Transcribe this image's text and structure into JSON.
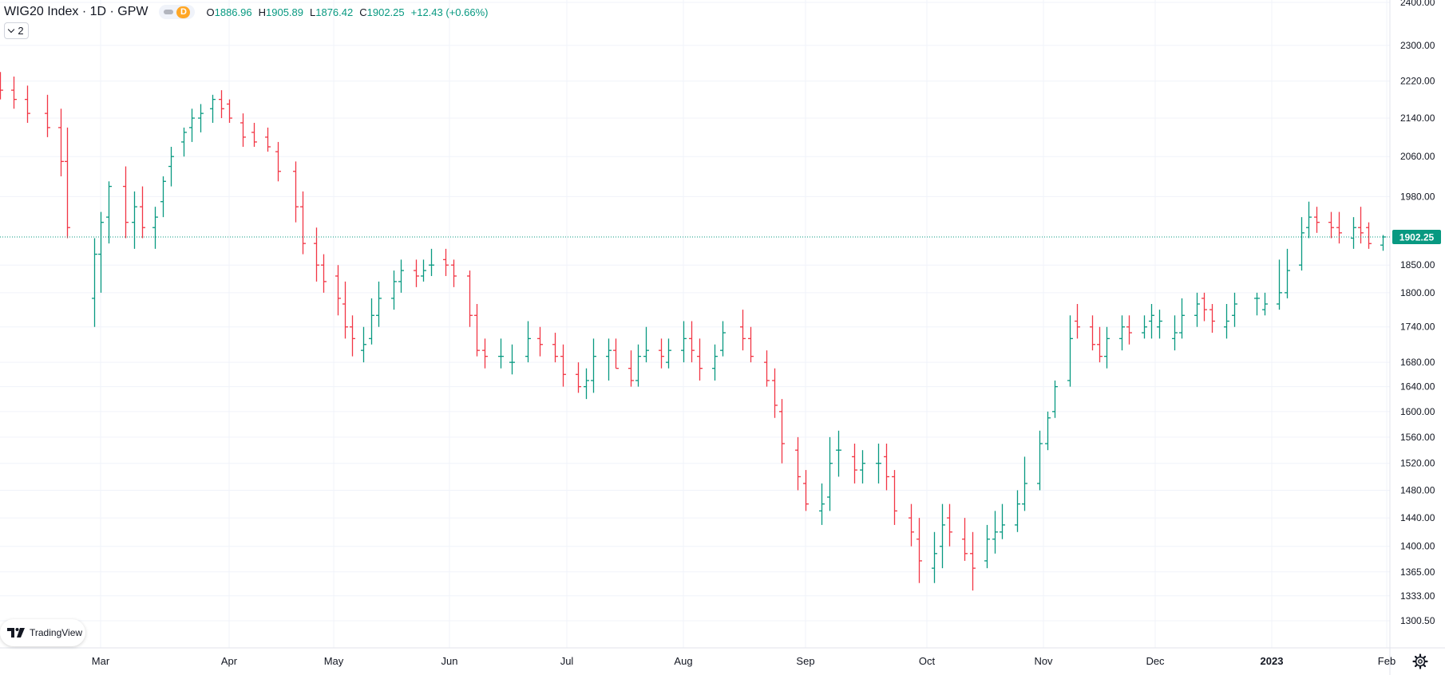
{
  "header": {
    "symbol_title": "WIG20 Index · 1D · GPW",
    "session_badge": "D",
    "ohlc": {
      "open_label": "O",
      "open": "1886.96",
      "high_label": "H",
      "high": "1905.89",
      "low_label": "L",
      "low": "1876.42",
      "close_label": "C",
      "close": "1902.25",
      "change": "+12.43 (+0.66%)"
    },
    "indicators_toggle": "2"
  },
  "branding": {
    "logo_text": "TradingView"
  },
  "colors": {
    "up": "#089981",
    "down": "#f23645",
    "grid": "#f0f3fa",
    "price_line": "#089981",
    "text": "#131722"
  },
  "icons": [
    "eye-icon",
    "chevron-down-icon",
    "tradingview-logo-icon",
    "gear-icon"
  ],
  "chart_data": {
    "type": "ohlc-bar",
    "instrument": "WIG20 Index",
    "exchange": "GPW",
    "interval": "1D",
    "y_axis": {
      "scale": "log",
      "ticks": [
        "2400.00",
        "2300.00",
        "2220.00",
        "2140.00",
        "2060.00",
        "1980.00",
        "1850.00",
        "1800.00",
        "1740.00",
        "1680.00",
        "1640.00",
        "1600.00",
        "1560.00",
        "1520.00",
        "1480.00",
        "1440.00",
        "1400.00",
        "1365.00",
        "1333.00",
        "1300.50"
      ],
      "range": [
        1270,
        2400
      ]
    },
    "x_axis": {
      "ticks": [
        "Mar",
        "Apr",
        "May",
        "Jun",
        "Jul",
        "Aug",
        "Sep",
        "Oct",
        "Nov",
        "Dec",
        "2023",
        "Feb"
      ],
      "range": [
        "2022-02-14",
        "2023-02-01"
      ]
    },
    "last_price": "1902.25",
    "grid": true,
    "series": [
      {
        "name": "WIG20 Index",
        "dates": [
          "2022-02-14",
          "2022-02-16",
          "2022-02-18",
          "2022-02-21",
          "2022-02-23",
          "2022-02-24",
          "2022-02-28",
          "2022-03-01",
          "2022-03-03",
          "2022-03-07",
          "2022-03-09",
          "2022-03-11",
          "2022-03-14",
          "2022-03-16",
          "2022-03-18",
          "2022-03-21",
          "2022-03-23",
          "2022-03-25",
          "2022-03-28",
          "2022-03-30",
          "2022-04-01",
          "2022-04-05",
          "2022-04-08",
          "2022-04-12",
          "2022-04-15",
          "2022-04-20",
          "2022-04-22",
          "2022-04-26",
          "2022-04-28",
          "2022-05-02",
          "2022-05-04",
          "2022-05-06",
          "2022-05-09",
          "2022-05-11",
          "2022-05-13",
          "2022-05-17",
          "2022-05-19",
          "2022-05-23",
          "2022-05-25",
          "2022-05-27",
          "2022-05-31",
          "2022-06-02",
          "2022-06-06",
          "2022-06-08",
          "2022-06-10",
          "2022-06-14",
          "2022-06-17",
          "2022-06-21",
          "2022-06-24",
          "2022-06-28",
          "2022-06-30",
          "2022-07-04",
          "2022-07-06",
          "2022-07-08",
          "2022-07-12",
          "2022-07-14",
          "2022-07-18",
          "2022-07-20",
          "2022-07-22",
          "2022-07-26",
          "2022-07-28",
          "2022-08-01",
          "2022-08-03",
          "2022-08-05",
          "2022-08-09",
          "2022-08-11",
          "2022-08-16",
          "2022-08-18",
          "2022-08-22",
          "2022-08-24",
          "2022-08-26",
          "2022-08-30",
          "2022-09-01",
          "2022-09-05",
          "2022-09-07",
          "2022-09-09",
          "2022-09-13",
          "2022-09-15",
          "2022-09-19",
          "2022-09-21",
          "2022-09-23",
          "2022-09-27",
          "2022-09-29",
          "2022-10-03",
          "2022-10-05",
          "2022-10-07",
          "2022-10-11",
          "2022-10-13",
          "2022-10-17",
          "2022-10-19",
          "2022-10-21",
          "2022-10-25",
          "2022-10-27",
          "2022-10-31",
          "2022-11-02",
          "2022-11-04",
          "2022-11-08",
          "2022-11-10",
          "2022-11-14",
          "2022-11-16",
          "2022-11-18",
          "2022-11-22",
          "2022-11-24",
          "2022-11-28",
          "2022-11-30",
          "2022-12-02",
          "2022-12-06",
          "2022-12-08",
          "2022-12-12",
          "2022-12-14",
          "2022-12-16",
          "2022-12-20",
          "2022-12-22",
          "2022-12-28",
          "2022-12-30",
          "2023-01-03",
          "2023-01-05",
          "2023-01-09",
          "2023-01-11",
          "2023-01-13",
          "2023-01-17",
          "2023-01-19",
          "2023-01-23",
          "2023-01-25",
          "2023-01-27",
          "2023-01-31"
        ],
        "open": [
          2230,
          2200,
          2180,
          2150,
          2120,
          2050,
          1790,
          1870,
          1940,
          2000,
          1930,
          1960,
          1920,
          1970,
          2040,
          2090,
          2120,
          2140,
          2160,
          2180,
          2170,
          2130,
          2110,
          2100,
          2070,
          2030,
          1960,
          1890,
          1850,
          1830,
          1780,
          1740,
          1700,
          1720,
          1760,
          1790,
          1820,
          1840,
          1830,
          1850,
          1860,
          1850,
          1830,
          1760,
          1700,
          1690,
          1680,
          1690,
          1720,
          1710,
          1690,
          1660,
          1640,
          1650,
          1690,
          1700,
          1670,
          1650,
          1690,
          1700,
          1680,
          1700,
          1720,
          1690,
          1670,
          1700,
          1740,
          1720,
          1680,
          1650,
          1600,
          1540,
          1490,
          1450,
          1470,
          1540,
          1530,
          1510,
          1520,
          1530,
          1500,
          1440,
          1410,
          1370,
          1400,
          1440,
          1410,
          1390,
          1380,
          1410,
          1420,
          1430,
          1460,
          1490,
          1550,
          1600,
          1650,
          1750,
          1740,
          1710,
          1690,
          1720,
          1740,
          1730,
          1750,
          1740,
          1720,
          1730,
          1760,
          1790,
          1770,
          1740,
          1760,
          1790,
          1770,
          1780,
          1800,
          1850,
          1920,
          1940,
          1930,
          1920,
          1900,
          1920,
          1920,
          1886.96
        ],
        "high": [
          2240,
          2230,
          2210,
          2190,
          2160,
          2120,
          1900,
          1950,
          2010,
          2040,
          1990,
          2000,
          1960,
          2020,
          2080,
          2120,
          2160,
          2170,
          2190,
          2200,
          2180,
          2150,
          2130,
          2120,
          2090,
          2050,
          1990,
          1920,
          1870,
          1850,
          1820,
          1760,
          1740,
          1790,
          1820,
          1840,
          1860,
          1860,
          1860,
          1880,
          1880,
          1860,
          1840,
          1780,
          1720,
          1720,
          1710,
          1750,
          1740,
          1730,
          1710,
          1680,
          1670,
          1720,
          1720,
          1720,
          1700,
          1710,
          1740,
          1720,
          1720,
          1750,
          1750,
          1720,
          1710,
          1750,
          1770,
          1740,
          1700,
          1670,
          1620,
          1560,
          1510,
          1490,
          1560,
          1570,
          1550,
          1540,
          1550,
          1550,
          1510,
          1460,
          1440,
          1420,
          1460,
          1460,
          1440,
          1420,
          1430,
          1450,
          1460,
          1480,
          1530,
          1570,
          1600,
          1650,
          1760,
          1780,
          1760,
          1740,
          1740,
          1760,
          1760,
          1760,
          1780,
          1770,
          1760,
          1790,
          1800,
          1800,
          1780,
          1780,
          1800,
          1800,
          1800,
          1860,
          1880,
          1940,
          1970,
          1960,
          1950,
          1950,
          1940,
          1960,
          1930,
          1905.89
        ],
        "low": [
          2180,
          2160,
          2130,
          2100,
          2020,
          1900,
          1740,
          1800,
          1890,
          1900,
          1880,
          1900,
          1880,
          1940,
          2000,
          2060,
          2090,
          2110,
          2130,
          2140,
          2130,
          2080,
          2080,
          2070,
          2010,
          1930,
          1870,
          1820,
          1800,
          1760,
          1720,
          1690,
          1680,
          1710,
          1740,
          1770,
          1800,
          1810,
          1820,
          1830,
          1830,
          1810,
          1740,
          1690,
          1670,
          1670,
          1660,
          1680,
          1690,
          1680,
          1640,
          1630,
          1620,
          1630,
          1650,
          1670,
          1640,
          1640,
          1680,
          1670,
          1670,
          1680,
          1680,
          1650,
          1650,
          1690,
          1700,
          1680,
          1640,
          1590,
          1520,
          1480,
          1450,
          1430,
          1450,
          1500,
          1490,
          1490,
          1490,
          1480,
          1430,
          1400,
          1350,
          1350,
          1370,
          1400,
          1380,
          1340,
          1370,
          1390,
          1410,
          1420,
          1450,
          1480,
          1540,
          1590,
          1640,
          1720,
          1700,
          1680,
          1670,
          1700,
          1710,
          1720,
          1720,
          1720,
          1700,
          1720,
          1740,
          1750,
          1730,
          1720,
          1740,
          1760,
          1760,
          1770,
          1790,
          1840,
          1900,
          1910,
          1900,
          1890,
          1880,
          1890,
          1880,
          1876.42
        ],
        "close": [
          2200,
          2180,
          2150,
          2120,
          2050,
          1920,
          1870,
          1930,
          2000,
          1930,
          1960,
          1920,
          1940,
          2010,
          2060,
          2110,
          2140,
          2150,
          2180,
          2160,
          2140,
          2100,
          2090,
          2080,
          2030,
          1960,
          1890,
          1850,
          1820,
          1790,
          1740,
          1720,
          1710,
          1760,
          1790,
          1820,
          1840,
          1830,
          1840,
          1850,
          1850,
          1830,
          1760,
          1700,
          1690,
          1690,
          1680,
          1720,
          1710,
          1690,
          1660,
          1640,
          1650,
          1690,
          1700,
          1670,
          1650,
          1690,
          1700,
          1690,
          1700,
          1720,
          1700,
          1670,
          1690,
          1730,
          1720,
          1690,
          1650,
          1610,
          1550,
          1500,
          1460,
          1460,
          1520,
          1540,
          1510,
          1520,
          1520,
          1500,
          1450,
          1420,
          1380,
          1390,
          1430,
          1420,
          1390,
          1370,
          1410,
          1420,
          1430,
          1460,
          1490,
          1550,
          1590,
          1640,
          1720,
          1740,
          1710,
          1690,
          1720,
          1740,
          1730,
          1740,
          1760,
          1750,
          1730,
          1760,
          1780,
          1770,
          1750,
          1750,
          1780,
          1790,
          1780,
          1800,
          1840,
          1910,
          1940,
          1930,
          1920,
          1910,
          1920,
          1910,
          1889.82,
          1902.25
        ]
      }
    ]
  }
}
